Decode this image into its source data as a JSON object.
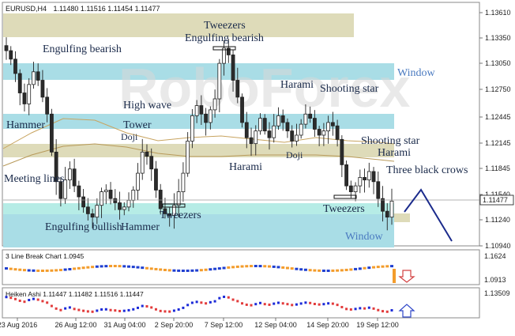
{
  "header": {
    "symbol": "EURUSD,H4",
    "ohlc": "1.11480 1.11516 1.11454 1.11477",
    "current_price": "1.11477"
  },
  "watermark": "RoboForex",
  "price_axis": [
    "1.13610",
    "1.13350",
    "1.13050",
    "1.12750",
    "1.12445",
    "1.12145",
    "1.11845",
    "1.11540",
    "1.11240",
    "1.10940"
  ],
  "time_axis": [
    "23 Aug 2016",
    "26 Aug 12:00",
    "31 Aug 04:00",
    "2 Sep 20:00",
    "7 Sep 12:00",
    "12 Sep 04:00",
    "14 Sep 20:00",
    "19 Sep 12:00"
  ],
  "annotations": {
    "engulfing_bearish_1": "Engulfing bearish",
    "tweezers_top": "Tweezers",
    "engulfing_bearish_2": "Engulfing bearish",
    "window_top": "Window",
    "hammer": "Hammer",
    "high_wave": "High wave",
    "tower": "Tower",
    "doji_1": "Doji",
    "harami_1": "Harami",
    "shooting_star_1": "Shooting star",
    "shooting_star_2": "Shooting star",
    "harami_2": "Harami",
    "harami_3": "Harami",
    "doji_2": "Doji",
    "three_black_crows": "Three black crows",
    "meeting_lines": "Meeting lines",
    "tweezers_bottom_1": "Tweezers",
    "tweezers_bottom_2": "Tweezers",
    "engulfing_bullish": "Engulfing bullish",
    "hammer_2": "Hammer",
    "window_bottom": "Window"
  },
  "indicator1": {
    "title": "3 Line Break Chart 1.0945",
    "axis": [
      "1.1624",
      "1.0913"
    ]
  },
  "indicator2": {
    "title": "Heiken Ashi 1.11447 1.11482 1.11516 1.11447",
    "axis": [
      "1.13509"
    ]
  },
  "colors": {
    "bull": "#ffffff",
    "bear": "#2b2b2b",
    "window_zone": "#a9dde6",
    "tweezers_zone": "#dedbb9",
    "ma_line": "#c8a460",
    "forecast": "#1b2b8c",
    "lb_up": "#1f3fd0",
    "lb_down": "#f39c2b",
    "ha_up": "#1b2ad8",
    "ha_down": "#e23b3b"
  },
  "chart_data": {
    "type": "candlestick",
    "timeframe": "H4",
    "ylim": [
      1.1094,
      1.137
    ],
    "candles_close_approx": [
      1.1325,
      1.1315,
      1.1298,
      1.1275,
      1.1262,
      1.1285,
      1.13,
      1.129,
      1.127,
      1.125,
      1.1205,
      1.117,
      1.115,
      1.1172,
      1.1185,
      1.1165,
      1.1152,
      1.114,
      1.1132,
      1.1128,
      1.1142,
      1.1158,
      1.116,
      1.115,
      1.1145,
      1.1137,
      1.114,
      1.1148,
      1.116,
      1.118,
      1.1205,
      1.12,
      1.1185,
      1.116,
      1.1138,
      1.1132,
      1.113,
      1.1142,
      1.1158,
      1.118,
      1.1218,
      1.1248,
      1.126,
      1.125,
      1.124,
      1.1255,
      1.1268,
      1.131,
      1.1328,
      1.132,
      1.129,
      1.127,
      1.124,
      1.1222,
      1.1215,
      1.123,
      1.1245,
      1.123,
      1.1222,
      1.1236,
      1.1248,
      1.124,
      1.123,
      1.1218,
      1.1225,
      1.1238,
      1.125,
      1.1245,
      1.1232,
      1.1225,
      1.123,
      1.124,
      1.1236,
      1.122,
      1.119,
      1.1165,
      1.1158,
      1.1165,
      1.1175,
      1.1172,
      1.1182,
      1.117,
      1.115,
      1.1135,
      1.1128,
      1.1147
    ]
  }
}
